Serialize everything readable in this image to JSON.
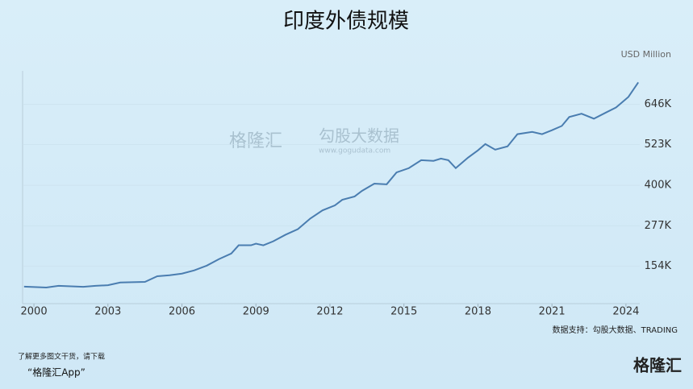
{
  "chart_data": {
    "type": "line",
    "title": "印度外债规模",
    "y_unit": "USD Million",
    "source": "数据支持：勾股大数据、TRADING",
    "x": [
      1999.6,
      2000.5,
      2001.0,
      2002.0,
      2002.5,
      2003.0,
      2003.5,
      2004.5,
      2005.0,
      2005.5,
      2006.0,
      2006.5,
      2007.0,
      2007.5,
      2008.0,
      2008.3,
      2008.8,
      2009.0,
      2009.3,
      2009.7,
      2010.2,
      2010.7,
      2011.2,
      2011.7,
      2012.2,
      2012.5,
      2013.0,
      2013.3,
      2013.8,
      2014.3,
      2014.7,
      2015.2,
      2015.7,
      2016.2,
      2016.5,
      2016.8,
      2017.1,
      2017.6,
      2018.0,
      2018.3,
      2018.7,
      2019.2,
      2019.6,
      2020.2,
      2020.6,
      2021.0,
      2021.4,
      2021.7,
      2022.2,
      2022.7,
      2023.2,
      2023.6,
      2024.1,
      2024.5
    ],
    "series": [
      {
        "name": "印度外债",
        "color": "#4a7db0",
        "values": [
          92500,
          90000,
          95000,
          92000,
          95000,
          97000,
          105000,
          107000,
          124000,
          127000,
          132000,
          142000,
          156000,
          176000,
          193000,
          218000,
          218000,
          223000,
          218000,
          230000,
          250000,
          267000,
          299000,
          324000,
          339000,
          356000,
          366000,
          383000,
          405000,
          403000,
          439000,
          452000,
          476000,
          474000,
          481000,
          476000,
          452000,
          484000,
          506000,
          525000,
          508000,
          518000,
          555000,
          562000,
          555000,
          567000,
          580000,
          607000,
          617000,
          602000,
          621000,
          636000,
          668000,
          712000
        ]
      }
    ],
    "xlim": [
      1999.54,
      2024.56
    ],
    "xticks": [
      2000,
      2003,
      2006,
      2009,
      2012,
      2015,
      2018,
      2021,
      2024
    ],
    "ylim": [
      41000,
      747000
    ],
    "yticks": [
      {
        "value": 154000,
        "label": "154K"
      },
      {
        "value": 277000,
        "label": "277K"
      },
      {
        "value": 400000,
        "label": "400K"
      },
      {
        "value": 523000,
        "label": "523K"
      },
      {
        "value": 646000,
        "label": "646K"
      }
    ]
  },
  "watermark": {
    "brand": "格隆汇",
    "partner": "勾股大数据",
    "url": "www.gogudata.com"
  },
  "footer": {
    "line1": "了解更多图文干货，请下载",
    "line2": "“格隆汇App”",
    "logo": "格隆汇"
  }
}
